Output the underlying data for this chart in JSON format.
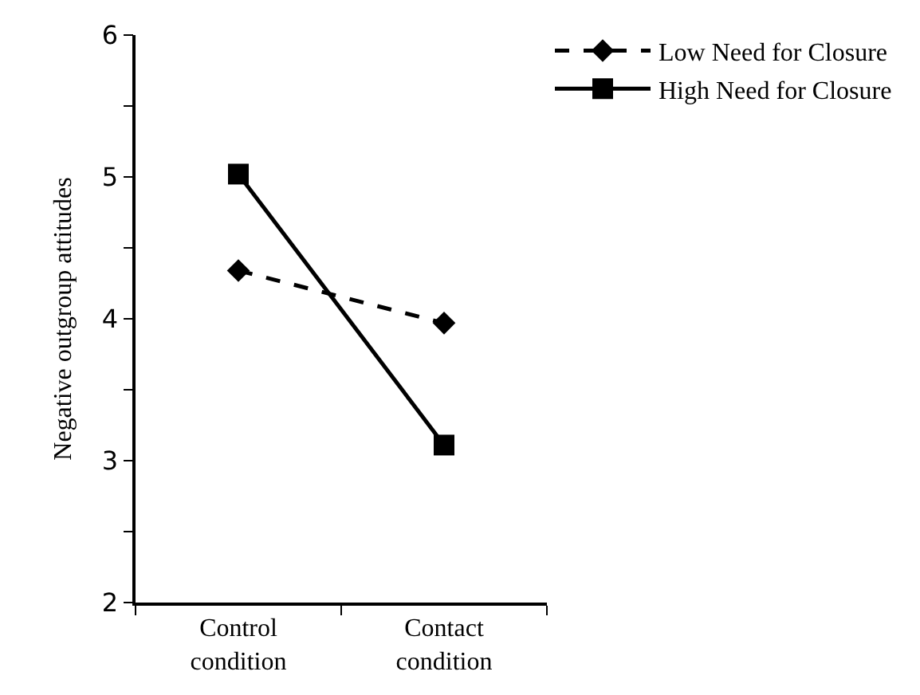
{
  "chart_data": {
    "type": "line",
    "ylabel": "Negative outgroup attitudes",
    "categories": [
      "Control condition",
      "Contact condition"
    ],
    "series": [
      {
        "name": "Low Need for Closure",
        "color": "#000000",
        "values": [
          4.34,
          3.97
        ],
        "marker": "diamond",
        "line_style": "dashed"
      },
      {
        "name": "High Need for Closure",
        "color": "#000000",
        "values": [
          5.02,
          3.11
        ],
        "marker": "square",
        "line_style": "solid"
      }
    ],
    "ylim": [
      2,
      6
    ],
    "yticks": [
      2,
      {
        "value": 2.5,
        "label": null
      },
      3,
      {
        "value": 3.5,
        "label": null
      },
      4,
      {
        "value": 4.5,
        "label": null
      },
      5,
      {
        "value": 5.5,
        "label": null
      },
      6
    ],
    "legend": "top right"
  }
}
